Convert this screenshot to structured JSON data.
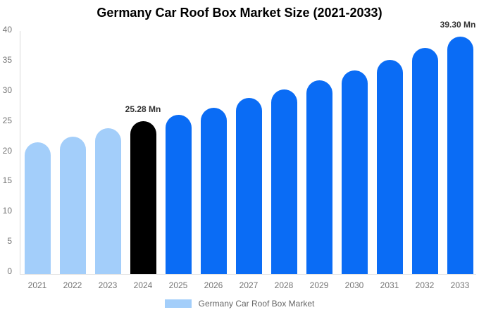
{
  "title": "Germany Car Roof Box Market Size (2021-2033)",
  "legend": {
    "label": "Germany Car Roof Box Market",
    "swatch_color": "#A3CEFA"
  },
  "palette": {
    "past": "#A3CEFA",
    "current": "#000000",
    "forecast": "#0A6CF5",
    "axis_label": "#757575",
    "annotation_text": "#333333",
    "axis_line": "#D9D9D9",
    "legend_text": "#666666",
    "title_text": "#000000",
    "background": "#FFFFFF"
  },
  "chart_data": {
    "type": "bar",
    "title": "Germany Car Roof Box Market Size (2021-2033)",
    "categories": [
      "2021",
      "2022",
      "2023",
      "2024",
      "2025",
      "2026",
      "2027",
      "2028",
      "2029",
      "2030",
      "2031",
      "2032",
      "2033"
    ],
    "values": [
      21.8,
      22.7,
      24.1,
      25.28,
      26.3,
      27.5,
      29.2,
      30.6,
      32.1,
      33.7,
      35.5,
      37.4,
      39.3
    ],
    "bar_styles": [
      "past",
      "past",
      "past",
      "current",
      "forecast",
      "forecast",
      "forecast",
      "forecast",
      "forecast",
      "forecast",
      "forecast",
      "forecast",
      "forecast"
    ],
    "annotations": [
      {
        "category": "2024",
        "text": "25.28 Mn"
      },
      {
        "category": "2033",
        "text": "39.30 Mn"
      }
    ],
    "unit": "Mn",
    "xlabel": "",
    "ylabel": "",
    "ylim": [
      0,
      40
    ],
    "yticks": [
      0,
      5,
      10,
      15,
      20,
      25,
      30,
      35,
      40
    ],
    "grid": false,
    "legend_position": "bottom",
    "legend_entries": [
      "Germany Car Roof Box Market"
    ]
  }
}
